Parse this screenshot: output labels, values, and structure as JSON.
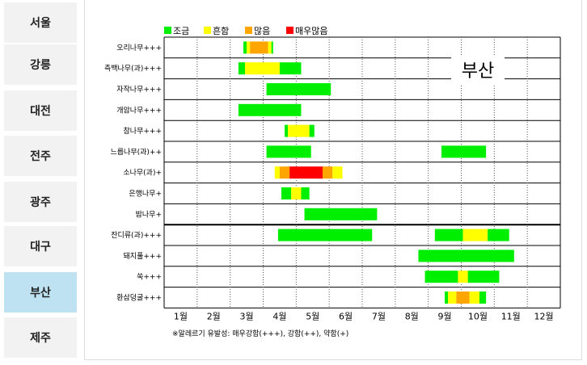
{
  "sidebar": {
    "cities": [
      "서울",
      "강릉",
      "대전",
      "전주",
      "광주",
      "대구",
      "부산",
      "제주"
    ],
    "active": "부산"
  },
  "colors": {
    "low": "#00ee00",
    "moderate": "#ffff00",
    "high": "#ffa500",
    "very_high": "#ff0000",
    "grid_solid": "#000000",
    "grid_dotted": "#555555"
  },
  "chart_data": {
    "type": "bar",
    "subtype": "gantt-timeline",
    "title": "부산",
    "legend": [
      {
        "level": "low",
        "label": "조금",
        "color": "#00ee00"
      },
      {
        "level": "moderate",
        "label": "흔함",
        "color": "#ffff00"
      },
      {
        "level": "high",
        "label": "많음",
        "color": "#ffa500"
      },
      {
        "level": "very_high",
        "label": "매우많음",
        "color": "#ff0000"
      }
    ],
    "legend_position": "top-left",
    "x_axis": {
      "ticks": [
        1,
        2,
        3,
        4,
        5,
        6,
        7,
        8,
        9,
        10,
        11,
        12
      ],
      "tick_labels": [
        "1월",
        "2월",
        "3월",
        "4월",
        "5월",
        "6월",
        "7월",
        "8월",
        "9월",
        "10월",
        "11월",
        "12월"
      ],
      "range": [
        0.5,
        12.5
      ]
    },
    "footnote": "※알레르기 유발성: 매우강함(+++), 강함(++), 약함(+)",
    "categories": [
      "오리나무+++",
      "측백나무(과)+++",
      "자작나무+++",
      "개암나무+++",
      "참나무+++",
      "느릅나무(과)++",
      "소나무(과)+",
      "은행나무+",
      "밤나무+",
      "잔디류(과)+++",
      "돼지풀+++",
      "쑥+++",
      "환삼덩굴+++"
    ],
    "group_divider_after": "밤나무+",
    "rows": [
      {
        "name": "오리나무+++",
        "segments": [
          {
            "start": 2.9,
            "end": 3.0,
            "level": "low"
          },
          {
            "start": 3.0,
            "end": 3.1,
            "level": "moderate"
          },
          {
            "start": 3.1,
            "end": 3.65,
            "level": "high"
          },
          {
            "start": 3.65,
            "end": 3.75,
            "level": "moderate"
          },
          {
            "start": 3.75,
            "end": 3.8,
            "level": "low"
          }
        ]
      },
      {
        "name": "측백나무(과)+++",
        "segments": [
          {
            "start": 2.75,
            "end": 2.95,
            "level": "low"
          },
          {
            "start": 2.95,
            "end": 4.0,
            "level": "moderate"
          },
          {
            "start": 4.0,
            "end": 4.65,
            "level": "low"
          }
        ]
      },
      {
        "name": "자작나무+++",
        "segments": [
          {
            "start": 3.6,
            "end": 5.55,
            "level": "low"
          }
        ]
      },
      {
        "name": "개암나무+++",
        "segments": [
          {
            "start": 2.75,
            "end": 4.65,
            "level": "low"
          }
        ]
      },
      {
        "name": "참나무+++",
        "segments": [
          {
            "start": 4.15,
            "end": 4.25,
            "level": "low"
          },
          {
            "start": 4.25,
            "end": 4.9,
            "level": "moderate"
          },
          {
            "start": 4.9,
            "end": 5.05,
            "level": "low"
          }
        ]
      },
      {
        "name": "느릅나무(과)++",
        "segments": [
          {
            "start": 3.6,
            "end": 4.95,
            "level": "low"
          },
          {
            "start": 8.9,
            "end": 10.25,
            "level": "low"
          }
        ]
      },
      {
        "name": "소나무(과)+",
        "segments": [
          {
            "start": 3.85,
            "end": 4.0,
            "level": "moderate"
          },
          {
            "start": 4.0,
            "end": 4.3,
            "level": "high"
          },
          {
            "start": 4.3,
            "end": 5.3,
            "level": "very_high"
          },
          {
            "start": 5.3,
            "end": 5.6,
            "level": "high"
          },
          {
            "start": 5.6,
            "end": 5.9,
            "level": "moderate"
          }
        ]
      },
      {
        "name": "은행나무+",
        "segments": [
          {
            "start": 4.05,
            "end": 4.35,
            "level": "low"
          },
          {
            "start": 4.35,
            "end": 4.65,
            "level": "moderate"
          },
          {
            "start": 4.65,
            "end": 4.9,
            "level": "low"
          }
        ]
      },
      {
        "name": "밤나무+",
        "segments": [
          {
            "start": 4.75,
            "end": 6.95,
            "level": "low"
          }
        ]
      },
      {
        "name": "잔디류(과)+++",
        "segments": [
          {
            "start": 3.95,
            "end": 6.8,
            "level": "low"
          },
          {
            "start": 8.7,
            "end": 9.55,
            "level": "low"
          },
          {
            "start": 9.55,
            "end": 10.3,
            "level": "moderate"
          },
          {
            "start": 10.3,
            "end": 10.95,
            "level": "low"
          }
        ]
      },
      {
        "name": "돼지풀+++",
        "segments": [
          {
            "start": 8.2,
            "end": 11.1,
            "level": "low"
          }
        ]
      },
      {
        "name": "쑥+++",
        "segments": [
          {
            "start": 8.4,
            "end": 9.4,
            "level": "low"
          },
          {
            "start": 9.4,
            "end": 9.7,
            "level": "moderate"
          },
          {
            "start": 9.7,
            "end": 10.65,
            "level": "low"
          }
        ]
      },
      {
        "name": "환삼덩굴+++",
        "segments": [
          {
            "start": 9.0,
            "end": 9.1,
            "level": "low"
          },
          {
            "start": 9.1,
            "end": 9.35,
            "level": "moderate"
          },
          {
            "start": 9.35,
            "end": 9.75,
            "level": "high"
          },
          {
            "start": 9.75,
            "end": 10.05,
            "level": "moderate"
          },
          {
            "start": 10.05,
            "end": 10.25,
            "level": "low"
          }
        ]
      }
    ]
  }
}
